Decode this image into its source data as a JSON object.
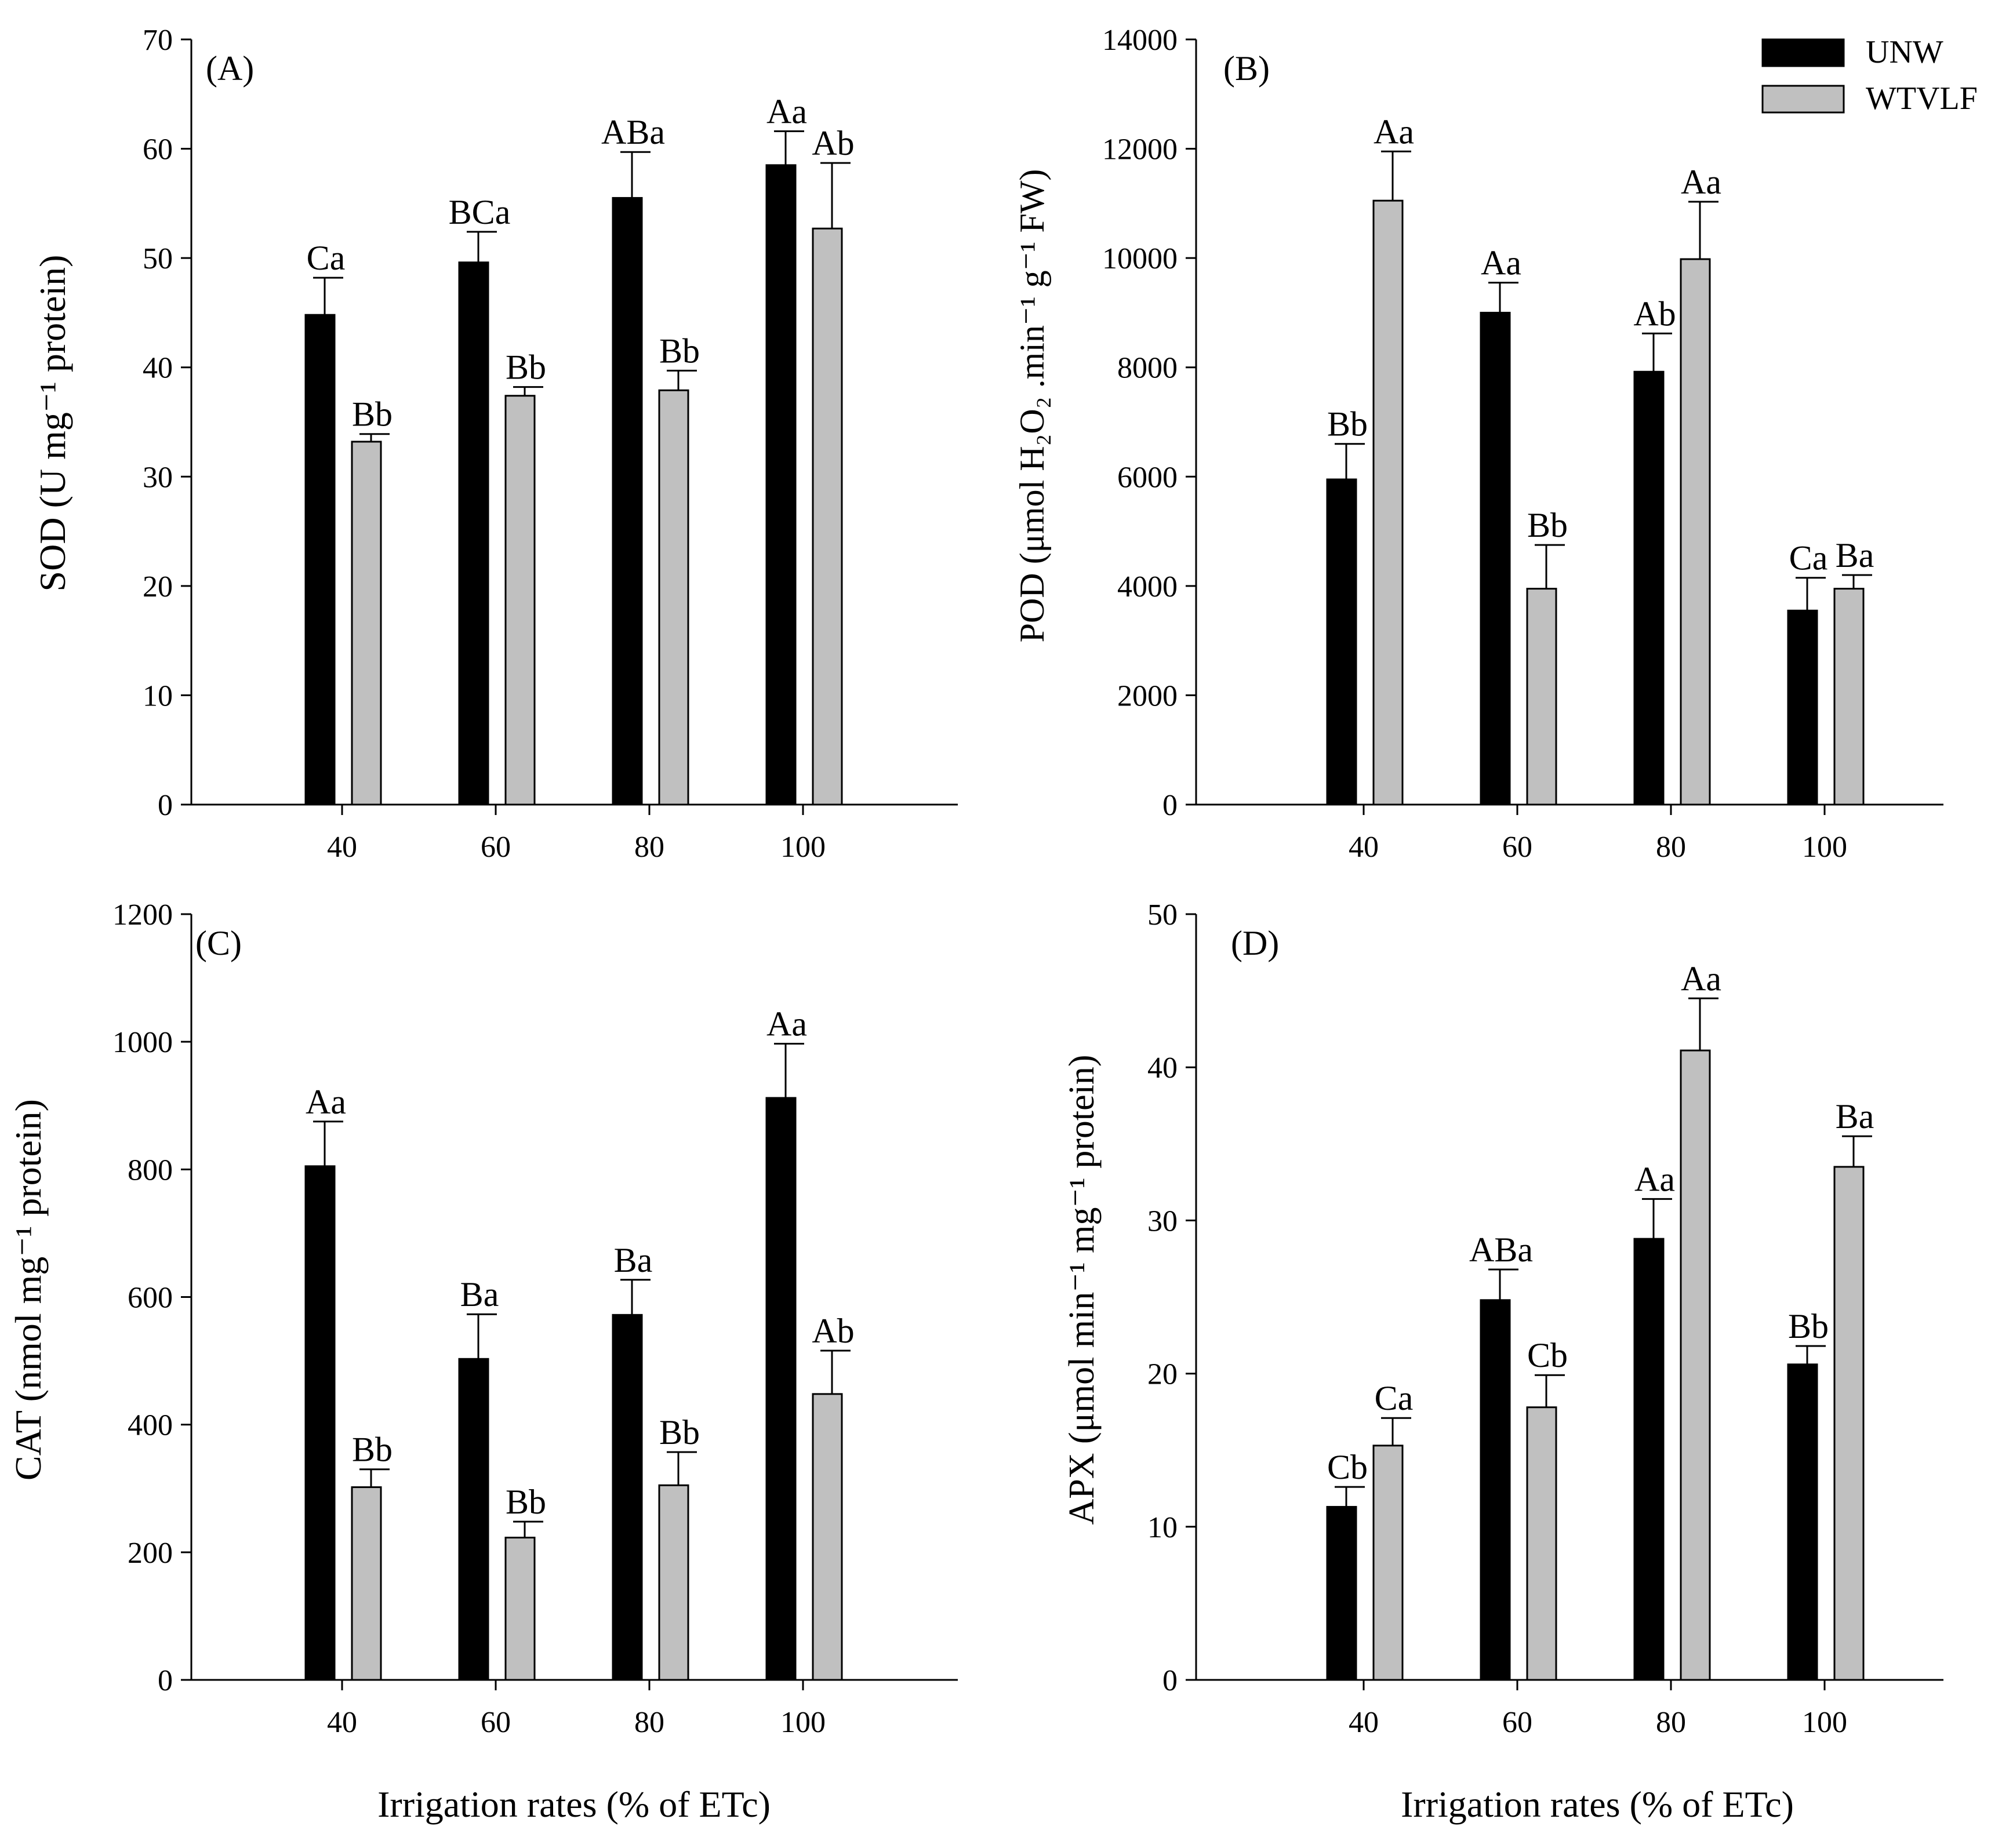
{
  "colors": {
    "UNW": "#000000",
    "WTVLF": "#c0c0c0",
    "axis": "#000000"
  },
  "legend": [
    {
      "key": "UNW",
      "label": "UNW"
    },
    {
      "key": "WTVLF",
      "label": "WTVLF"
    }
  ],
  "xlabel": "Irrigation rates (% of ETc)",
  "chart_data": [
    {
      "panel": "(A)",
      "type": "bar",
      "categories": [
        "40",
        "60",
        "80",
        "100"
      ],
      "ylim": [
        0,
        70
      ],
      "yticks": [
        0,
        10,
        20,
        30,
        40,
        50,
        60,
        70
      ],
      "ylabel": "SOD (U mg⁻¹ protein)",
      "series": [
        {
          "name": "UNW",
          "values": [
            44.8,
            49.6,
            55.5,
            58.5
          ],
          "errors": [
            3.4,
            2.8,
            4.2,
            3.1
          ],
          "labels": [
            "Ca",
            "BCa",
            "ABa",
            "Aa"
          ]
        },
        {
          "name": "WTVLF",
          "values": [
            33.2,
            37.4,
            37.9,
            52.7
          ],
          "errors": [
            0.7,
            0.8,
            1.8,
            6.0
          ],
          "labels": [
            "Bb",
            "Bb",
            "Bb",
            "Ab"
          ]
        }
      ]
    },
    {
      "panel": "(B)",
      "type": "bar",
      "categories": [
        "40",
        "60",
        "80",
        "100"
      ],
      "ylim": [
        0,
        14000
      ],
      "yticks": [
        0,
        2000,
        4000,
        6000,
        8000,
        10000,
        12000,
        14000
      ],
      "ylabel": "POD (μmol H₂O₂ .min⁻¹ g⁻¹ FW)",
      "series": [
        {
          "name": "UNW",
          "values": [
            5950,
            9000,
            7920,
            3550
          ],
          "errors": [
            650,
            550,
            700,
            600
          ],
          "labels": [
            "Bb",
            "Aa",
            "Ab",
            "Ca"
          ]
        },
        {
          "name": "WTVLF",
          "values": [
            11050,
            3950,
            9980,
            3950
          ],
          "errors": [
            900,
            800,
            1050,
            250
          ],
          "labels": [
            "Aa",
            "Bb",
            "Aa",
            "Ba"
          ]
        }
      ]
    },
    {
      "panel": "(C)",
      "type": "bar",
      "categories": [
        "40",
        "60",
        "80",
        "100"
      ],
      "ylim": [
        0,
        1200
      ],
      "yticks": [
        0,
        200,
        400,
        600,
        800,
        1000,
        1200
      ],
      "ylabel": "CAT (nmol mg⁻¹ protein)",
      "series": [
        {
          "name": "UNW",
          "values": [
            805,
            503,
            572,
            912
          ],
          "errors": [
            70,
            70,
            55,
            85
          ],
          "labels": [
            "Aa",
            "Ba",
            "Ba",
            "Aa"
          ]
        },
        {
          "name": "WTVLF",
          "values": [
            302,
            223,
            305,
            448
          ],
          "errors": [
            28,
            25,
            52,
            68
          ],
          "labels": [
            "Bb",
            "Bb",
            "Bb",
            "Ab"
          ]
        }
      ]
    },
    {
      "panel": "(D)",
      "type": "bar",
      "categories": [
        "40",
        "60",
        "80",
        "100"
      ],
      "ylim": [
        0,
        50
      ],
      "yticks": [
        0,
        10,
        20,
        30,
        40,
        50
      ],
      "ylabel": "APX (μmol min⁻¹ mg⁻¹ protein)",
      "series": [
        {
          "name": "UNW",
          "values": [
            11.3,
            24.8,
            28.8,
            20.6
          ],
          "errors": [
            1.3,
            2.0,
            2.6,
            1.2
          ],
          "labels": [
            "Cb",
            "ABa",
            "Aa",
            "Bb"
          ]
        },
        {
          "name": "WTVLF",
          "values": [
            15.3,
            17.8,
            41.1,
            33.5
          ],
          "errors": [
            1.8,
            2.1,
            3.4,
            2.0
          ],
          "labels": [
            "Ca",
            "Cb",
            "Aa",
            "Ba"
          ]
        }
      ]
    }
  ]
}
